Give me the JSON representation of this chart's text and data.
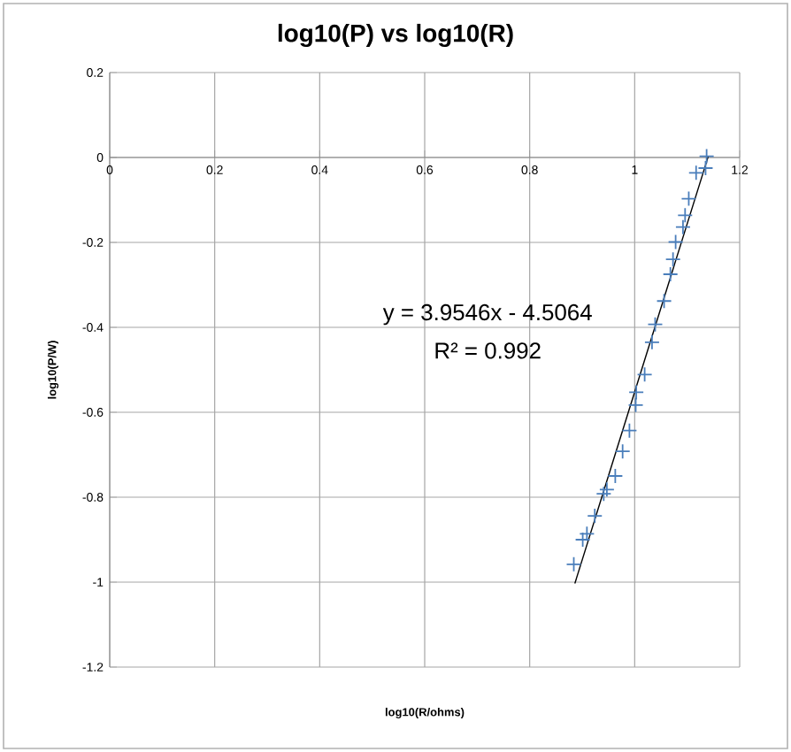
{
  "chart_data": {
    "type": "scatter",
    "title": "log10(P) vs log10(R)",
    "xlabel": "log10(R/ohms)",
    "ylabel": "log10(P/W)",
    "annotations": [
      "y = 3.9546x - 4.5064",
      "R² = 0.992"
    ],
    "xlim": [
      0,
      1.2
    ],
    "ylim": [
      -1.2,
      0.2
    ],
    "xticks": [
      0,
      0.2,
      0.4,
      0.6,
      0.8,
      1,
      1.2
    ],
    "yticks": [
      -1.2,
      -1,
      -0.8,
      -0.6,
      -0.4,
      -0.2,
      0,
      0.2
    ],
    "grid": true,
    "marker": "cross",
    "series": [
      {
        "color": "#4a7ebb",
        "x": [
          0.884,
          0.901,
          0.909,
          0.924,
          0.941,
          0.947,
          0.963,
          0.977,
          0.99,
          1.002,
          1.003,
          1.019,
          1.033,
          1.039,
          1.056,
          1.068,
          1.073,
          1.078,
          1.092,
          1.096,
          1.103,
          1.117,
          1.135,
          1.137
        ],
        "values": [
          -0.958,
          -0.9,
          -0.886,
          -0.844,
          -0.792,
          -0.782,
          -0.75,
          -0.692,
          -0.643,
          -0.583,
          -0.553,
          -0.511,
          -0.435,
          -0.393,
          -0.338,
          -0.275,
          -0.24,
          -0.199,
          -0.164,
          -0.136,
          -0.097,
          -0.036,
          -0.025,
          0.003
        ]
      },
      {
        "type": "line",
        "color": "#000000",
        "marker": "none",
        "x": [
          0.886,
          1.14
        ],
        "values": [
          -1.003,
          0.002
        ]
      }
    ]
  }
}
